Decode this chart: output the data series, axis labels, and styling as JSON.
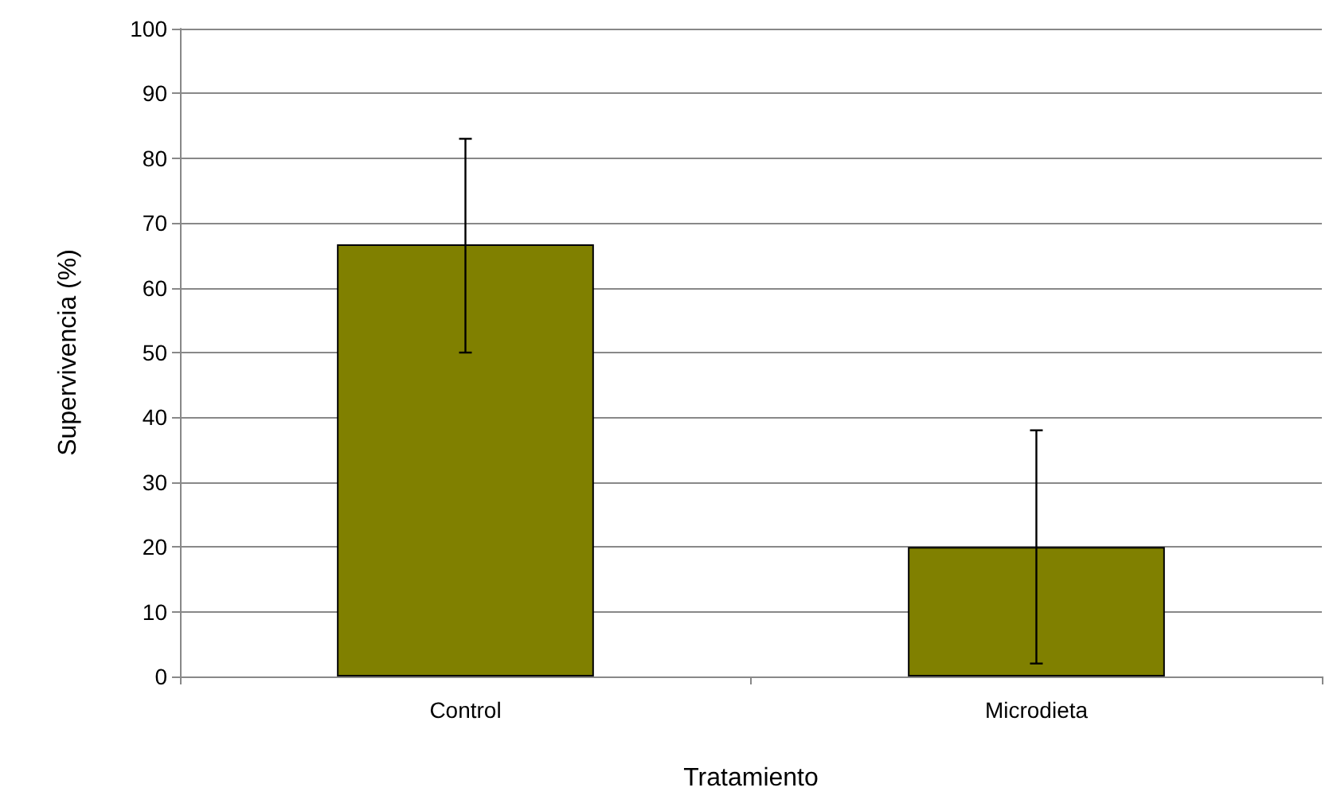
{
  "chart_data": {
    "type": "bar",
    "xlabel": "Tratamiento",
    "ylabel": "Supervivencia (%)",
    "categories": [
      "Control",
      "Microdieta"
    ],
    "series": [
      {
        "color": "#808000",
        "values": [
          66.7,
          20
        ],
        "errors": [
          [
            50,
            83
          ],
          [
            2,
            38
          ]
        ]
      }
    ],
    "ylim": [
      0,
      100
    ],
    "yticks": [
      0,
      10,
      20,
      30,
      40,
      50,
      60,
      70,
      80,
      90,
      100
    ],
    "grid": "y"
  }
}
